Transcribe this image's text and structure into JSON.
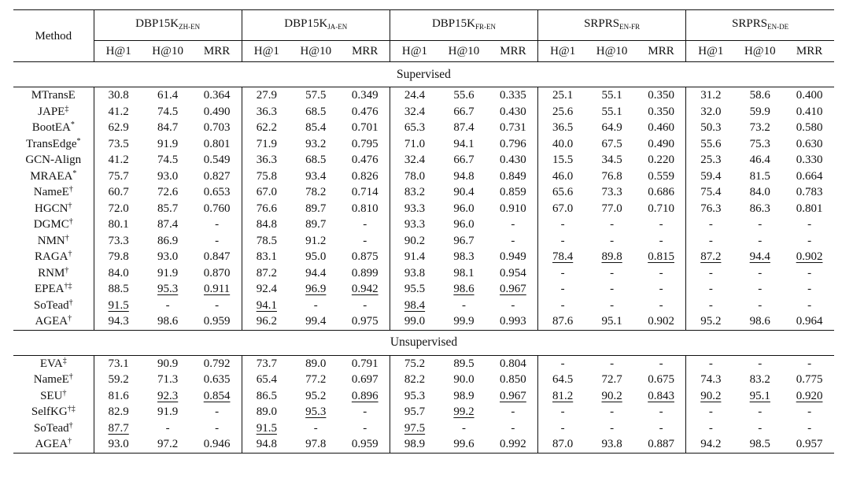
{
  "header": {
    "method": "Method",
    "groups": [
      {
        "base": "DBP15K",
        "sub": "ZH-EN"
      },
      {
        "base": "DBP15K",
        "sub": "JA-EN"
      },
      {
        "base": "DBP15K",
        "sub": "FR-EN"
      },
      {
        "base": "SRPRS",
        "sub": "EN-FR"
      },
      {
        "base": "SRPRS",
        "sub": "EN-DE"
      }
    ],
    "metrics": [
      "H@1",
      "H@10",
      "MRR"
    ]
  },
  "sections": [
    {
      "title": "Supervised",
      "rows": [
        {
          "method": "MTransE",
          "mark": "",
          "values": [
            "30.8",
            "61.4",
            "0.364",
            "27.9",
            "57.5",
            "0.349",
            "24.4",
            "55.6",
            "0.335",
            "25.1",
            "55.1",
            "0.350",
            "31.2",
            "58.6",
            "0.400"
          ],
          "styles": []
        },
        {
          "method": "JAPE",
          "mark": "‡",
          "values": [
            "41.2",
            "74.5",
            "0.490",
            "36.3",
            "68.5",
            "0.476",
            "32.4",
            "66.7",
            "0.430",
            "25.6",
            "55.1",
            "0.350",
            "32.0",
            "59.9",
            "0.410"
          ],
          "styles": []
        },
        {
          "method": "BootEA",
          "mark": "*",
          "values": [
            "62.9",
            "84.7",
            "0.703",
            "62.2",
            "85.4",
            "0.701",
            "65.3",
            "87.4",
            "0.731",
            "36.5",
            "64.9",
            "0.460",
            "50.3",
            "73.2",
            "0.580"
          ],
          "styles": []
        },
        {
          "method": "TransEdge",
          "mark": "*",
          "values": [
            "73.5",
            "91.9",
            "0.801",
            "71.9",
            "93.2",
            "0.795",
            "71.0",
            "94.1",
            "0.796",
            "40.0",
            "67.5",
            "0.490",
            "55.6",
            "75.3",
            "0.630"
          ],
          "styles": []
        },
        {
          "method": "GCN-Align",
          "mark": "",
          "values": [
            "41.2",
            "74.5",
            "0.549",
            "36.3",
            "68.5",
            "0.476",
            "32.4",
            "66.7",
            "0.430",
            "15.5",
            "34.5",
            "0.220",
            "25.3",
            "46.4",
            "0.330"
          ],
          "styles": []
        },
        {
          "method": "MRAEA",
          "mark": "*",
          "values": [
            "75.7",
            "93.0",
            "0.827",
            "75.8",
            "93.4",
            "0.826",
            "78.0",
            "94.8",
            "0.849",
            "46.0",
            "76.8",
            "0.559",
            "59.4",
            "81.5",
            "0.664"
          ],
          "styles": []
        },
        {
          "method": "NameE",
          "mark": "†",
          "values": [
            "60.7",
            "72.6",
            "0.653",
            "67.0",
            "78.2",
            "0.714",
            "83.2",
            "90.4",
            "0.859",
            "65.6",
            "73.3",
            "0.686",
            "75.4",
            "84.0",
            "0.783"
          ],
          "styles": []
        },
        {
          "method": "HGCN",
          "mark": "†",
          "values": [
            "72.0",
            "85.7",
            "0.760",
            "76.6",
            "89.7",
            "0.810",
            "93.3",
            "96.0",
            "0.910",
            "67.0",
            "77.0",
            "0.710",
            "76.3",
            "86.3",
            "0.801"
          ],
          "styles": []
        },
        {
          "method": "DGMC",
          "mark": "†",
          "values": [
            "80.1",
            "87.4",
            "-",
            "84.8",
            "89.7",
            "-",
            "93.3",
            "96.0",
            "-",
            "-",
            "-",
            "-",
            "-",
            "-",
            "-"
          ],
          "styles": []
        },
        {
          "method": "NMN",
          "mark": "†",
          "values": [
            "73.3",
            "86.9",
            "-",
            "78.5",
            "91.2",
            "-",
            "90.2",
            "96.7",
            "-",
            "-",
            "-",
            "-",
            "-",
            "-",
            "-"
          ],
          "styles": []
        },
        {
          "method": "RAGA",
          "mark": "†",
          "values": [
            "79.8",
            "93.0",
            "0.847",
            "83.1",
            "95.0",
            "0.875",
            "91.4",
            "98.3",
            "0.949",
            "78.4",
            "89.8",
            "0.815",
            "87.2",
            "94.4",
            "0.902"
          ],
          "styles": [
            "",
            "",
            "",
            "",
            "",
            "",
            "",
            "",
            "",
            "u",
            "u",
            "u",
            "u",
            "u",
            "u"
          ]
        },
        {
          "method": "RNM",
          "mark": "†",
          "values": [
            "84.0",
            "91.9",
            "0.870",
            "87.2",
            "94.4",
            "0.899",
            "93.8",
            "98.1",
            "0.954",
            "-",
            "-",
            "-",
            "-",
            "-",
            "-"
          ],
          "styles": []
        },
        {
          "method": "EPEA",
          "mark": "†‡",
          "values": [
            "88.5",
            "95.3",
            "0.911",
            "92.4",
            "96.9",
            "0.942",
            "95.5",
            "98.6",
            "0.967",
            "-",
            "-",
            "-",
            "-",
            "-",
            "-"
          ],
          "styles": [
            "",
            "u",
            "u",
            "",
            "u",
            "u",
            "",
            "u",
            "u",
            "",
            "",
            "",
            "",
            "",
            ""
          ]
        },
        {
          "method": "SoTead",
          "mark": "†",
          "values": [
            "91.5",
            "-",
            "-",
            "94.1",
            "-",
            "-",
            "98.4",
            "-",
            "-",
            "-",
            "-",
            "-",
            "-",
            "-",
            "-"
          ],
          "styles": [
            "u",
            "",
            "",
            "u",
            "",
            "",
            "u",
            "",
            "",
            "",
            "",
            "",
            "",
            "",
            ""
          ]
        },
        {
          "method": "AGEA",
          "mark": "†",
          "values": [
            "94.3",
            "98.6",
            "0.959",
            "96.2",
            "99.4",
            "0.975",
            "99.0",
            "99.9",
            "0.993",
            "87.6",
            "95.1",
            "0.902",
            "95.2",
            "98.6",
            "0.964"
          ],
          "styles": [
            "b",
            "b",
            "b",
            "b",
            "b",
            "b",
            "b",
            "b",
            "b",
            "b",
            "b",
            "b",
            "b",
            "b",
            "b"
          ]
        }
      ]
    },
    {
      "title": "Unsupervised",
      "rows": [
        {
          "method": "EVA",
          "mark": "‡",
          "values": [
            "73.1",
            "90.9",
            "0.792",
            "73.7",
            "89.0",
            "0.791",
            "75.2",
            "89.5",
            "0.804",
            "-",
            "-",
            "-",
            "-",
            "-",
            "-"
          ],
          "styles": []
        },
        {
          "method": "NameE",
          "mark": "†",
          "values": [
            "59.2",
            "71.3",
            "0.635",
            "65.4",
            "77.2",
            "0.697",
            "82.2",
            "90.0",
            "0.850",
            "64.5",
            "72.7",
            "0.675",
            "74.3",
            "83.2",
            "0.775"
          ],
          "styles": []
        },
        {
          "method": "SEU",
          "mark": "†",
          "values": [
            "81.6",
            "92.3",
            "0.854",
            "86.5",
            "95.2",
            "0.896",
            "95.3",
            "98.9",
            "0.967",
            "81.2",
            "90.2",
            "0.843",
            "90.2",
            "95.1",
            "0.920"
          ],
          "styles": [
            "",
            "u",
            "u",
            "",
            "",
            "u",
            "",
            "",
            "u",
            "u",
            "u",
            "u",
            "u",
            "u",
            "u"
          ]
        },
        {
          "method": "SelfKG",
          "mark": "†‡",
          "values": [
            "82.9",
            "91.9",
            "-",
            "89.0",
            "95.3",
            "-",
            "95.7",
            "99.2",
            "-",
            "-",
            "-",
            "-",
            "-",
            "-",
            "-"
          ],
          "styles": [
            "",
            "",
            "",
            "",
            "u",
            "",
            "",
            "u",
            "",
            "",
            "",
            "",
            "",
            "",
            ""
          ]
        },
        {
          "method": "SoTead",
          "mark": "†",
          "values": [
            "87.7",
            "-",
            "-",
            "91.5",
            "-",
            "-",
            "97.5",
            "-",
            "-",
            "-",
            "-",
            "-",
            "-",
            "-",
            "-"
          ],
          "styles": [
            "u",
            "",
            "",
            "u",
            "",
            "",
            "u",
            "",
            "",
            "",
            "",
            "",
            "",
            "",
            ""
          ]
        },
        {
          "method": "AGEA",
          "mark": "†",
          "values": [
            "93.0",
            "97.2",
            "0.946",
            "94.8",
            "97.8",
            "0.959",
            "98.9",
            "99.6",
            "0.992",
            "87.0",
            "93.8",
            "0.887",
            "94.2",
            "98.5",
            "0.957"
          ],
          "styles": [
            "b",
            "b",
            "b",
            "b",
            "b",
            "b",
            "b",
            "b",
            "b",
            "b",
            "b",
            "b",
            "b",
            "b",
            "b"
          ]
        }
      ]
    }
  ]
}
